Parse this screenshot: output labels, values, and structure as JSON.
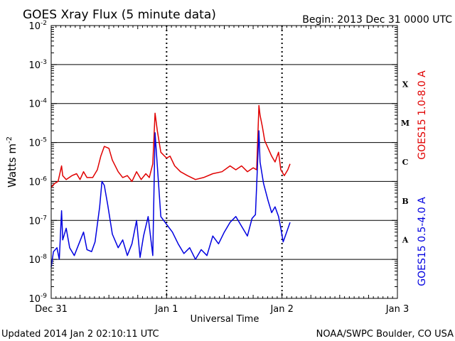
{
  "chart_data": {
    "type": "line",
    "title": "GOES Xray Flux (5 minute data)",
    "begin_label": "Begin:  2013 Dec 31 0000 UTC",
    "xlabel": "Universal Time",
    "ylabel": "Watts m",
    "ylabel_exp": "-2",
    "footer_left": "Updated 2014 Jan  2 02:10:11 UTC",
    "footer_right": "NOAA/SWPC Boulder, CO USA",
    "y_scale": "log",
    "ylim": [
      1e-09,
      0.01
    ],
    "xlim_days": [
      0,
      3
    ],
    "x_ticks": [
      {
        "day": 0,
        "label": "Dec 31"
      },
      {
        "day": 1,
        "label": "Jan 1"
      },
      {
        "day": 2,
        "label": "Jan 2"
      },
      {
        "day": 3,
        "label": "Jan 3"
      }
    ],
    "y_ticks": [
      {
        "exp": -2,
        "base": "10",
        "sup": "-2"
      },
      {
        "exp": -3,
        "base": "10",
        "sup": "-3"
      },
      {
        "exp": -4,
        "base": "10",
        "sup": "-4"
      },
      {
        "exp": -5,
        "base": "10",
        "sup": "-5"
      },
      {
        "exp": -6,
        "base": "10",
        "sup": "-6"
      },
      {
        "exp": -7,
        "base": "10",
        "sup": "-7"
      },
      {
        "exp": -8,
        "base": "10",
        "sup": "-8"
      },
      {
        "exp": -9,
        "base": "10",
        "sup": "-9"
      }
    ],
    "flare_classes": [
      {
        "label": "X",
        "exp_mid": -3.5
      },
      {
        "label": "M",
        "exp_mid": -4.5
      },
      {
        "label": "C",
        "exp_mid": -5.5
      },
      {
        "label": "B",
        "exp_mid": -6.5
      },
      {
        "label": "A",
        "exp_mid": -7.5
      }
    ],
    "series": [
      {
        "name": "GOES15 1.0-8.0 A",
        "color": "#e00000",
        "points": [
          [
            0.0,
            -6.15
          ],
          [
            0.03,
            -6.05
          ],
          [
            0.06,
            -6.0
          ],
          [
            0.09,
            -5.6
          ],
          [
            0.1,
            -5.85
          ],
          [
            0.13,
            -5.95
          ],
          [
            0.18,
            -5.85
          ],
          [
            0.22,
            -5.8
          ],
          [
            0.25,
            -5.95
          ],
          [
            0.28,
            -5.75
          ],
          [
            0.31,
            -5.9
          ],
          [
            0.36,
            -5.9
          ],
          [
            0.4,
            -5.7
          ],
          [
            0.43,
            -5.35
          ],
          [
            0.46,
            -5.1
          ],
          [
            0.5,
            -5.15
          ],
          [
            0.53,
            -5.45
          ],
          [
            0.58,
            -5.75
          ],
          [
            0.62,
            -5.9
          ],
          [
            0.66,
            -5.85
          ],
          [
            0.7,
            -6.0
          ],
          [
            0.74,
            -5.75
          ],
          [
            0.78,
            -5.95
          ],
          [
            0.82,
            -5.8
          ],
          [
            0.85,
            -5.9
          ],
          [
            0.88,
            -5.55
          ],
          [
            0.9,
            -4.25
          ],
          [
            0.92,
            -4.7
          ],
          [
            0.95,
            -5.25
          ],
          [
            1.0,
            -5.4
          ],
          [
            1.03,
            -5.35
          ],
          [
            1.07,
            -5.6
          ],
          [
            1.12,
            -5.75
          ],
          [
            1.18,
            -5.85
          ],
          [
            1.25,
            -5.95
          ],
          [
            1.32,
            -5.9
          ],
          [
            1.4,
            -5.8
          ],
          [
            1.48,
            -5.75
          ],
          [
            1.55,
            -5.6
          ],
          [
            1.6,
            -5.7
          ],
          [
            1.65,
            -5.6
          ],
          [
            1.7,
            -5.75
          ],
          [
            1.75,
            -5.65
          ],
          [
            1.78,
            -5.7
          ],
          [
            1.8,
            -4.05
          ],
          [
            1.81,
            -4.3
          ],
          [
            1.83,
            -4.6
          ],
          [
            1.85,
            -4.95
          ],
          [
            1.88,
            -5.15
          ],
          [
            1.91,
            -5.35
          ],
          [
            1.94,
            -5.5
          ],
          [
            1.97,
            -5.25
          ],
          [
            1.99,
            -5.7
          ],
          [
            2.02,
            -5.85
          ],
          [
            2.05,
            -5.7
          ],
          [
            2.07,
            -5.55
          ]
        ]
      },
      {
        "name": "GOES15 0.5-4.0 A",
        "color": "#0000e0",
        "points": [
          [
            0.0,
            -8.2
          ],
          [
            0.02,
            -7.8
          ],
          [
            0.05,
            -7.7
          ],
          [
            0.07,
            -8.0
          ],
          [
            0.09,
            -6.75
          ],
          [
            0.1,
            -7.5
          ],
          [
            0.13,
            -7.2
          ],
          [
            0.16,
            -7.7
          ],
          [
            0.2,
            -7.9
          ],
          [
            0.24,
            -7.6
          ],
          [
            0.28,
            -7.3
          ],
          [
            0.31,
            -7.75
          ],
          [
            0.35,
            -7.8
          ],
          [
            0.38,
            -7.55
          ],
          [
            0.42,
            -6.65
          ],
          [
            0.44,
            -6.0
          ],
          [
            0.46,
            -6.1
          ],
          [
            0.49,
            -6.6
          ],
          [
            0.53,
            -7.35
          ],
          [
            0.58,
            -7.7
          ],
          [
            0.62,
            -7.5
          ],
          [
            0.66,
            -7.9
          ],
          [
            0.7,
            -7.6
          ],
          [
            0.74,
            -7.0
          ],
          [
            0.77,
            -7.95
          ],
          [
            0.8,
            -7.4
          ],
          [
            0.84,
            -6.9
          ],
          [
            0.88,
            -7.9
          ],
          [
            0.9,
            -4.75
          ],
          [
            0.92,
            -5.6
          ],
          [
            0.95,
            -6.9
          ],
          [
            1.0,
            -7.1
          ],
          [
            1.05,
            -7.3
          ],
          [
            1.1,
            -7.6
          ],
          [
            1.15,
            -7.85
          ],
          [
            1.2,
            -7.7
          ],
          [
            1.25,
            -8.0
          ],
          [
            1.3,
            -7.75
          ],
          [
            1.35,
            -7.9
          ],
          [
            1.4,
            -7.4
          ],
          [
            1.45,
            -7.6
          ],
          [
            1.5,
            -7.3
          ],
          [
            1.55,
            -7.05
          ],
          [
            1.6,
            -6.9
          ],
          [
            1.65,
            -7.15
          ],
          [
            1.7,
            -7.4
          ],
          [
            1.74,
            -6.95
          ],
          [
            1.77,
            -6.85
          ],
          [
            1.8,
            -4.7
          ],
          [
            1.81,
            -5.5
          ],
          [
            1.84,
            -6.05
          ],
          [
            1.88,
            -6.5
          ],
          [
            1.91,
            -6.8
          ],
          [
            1.94,
            -6.65
          ],
          [
            1.97,
            -6.9
          ],
          [
            1.99,
            -7.2
          ],
          [
            2.01,
            -7.55
          ],
          [
            2.04,
            -7.3
          ],
          [
            2.07,
            -7.05
          ]
        ]
      }
    ]
  }
}
